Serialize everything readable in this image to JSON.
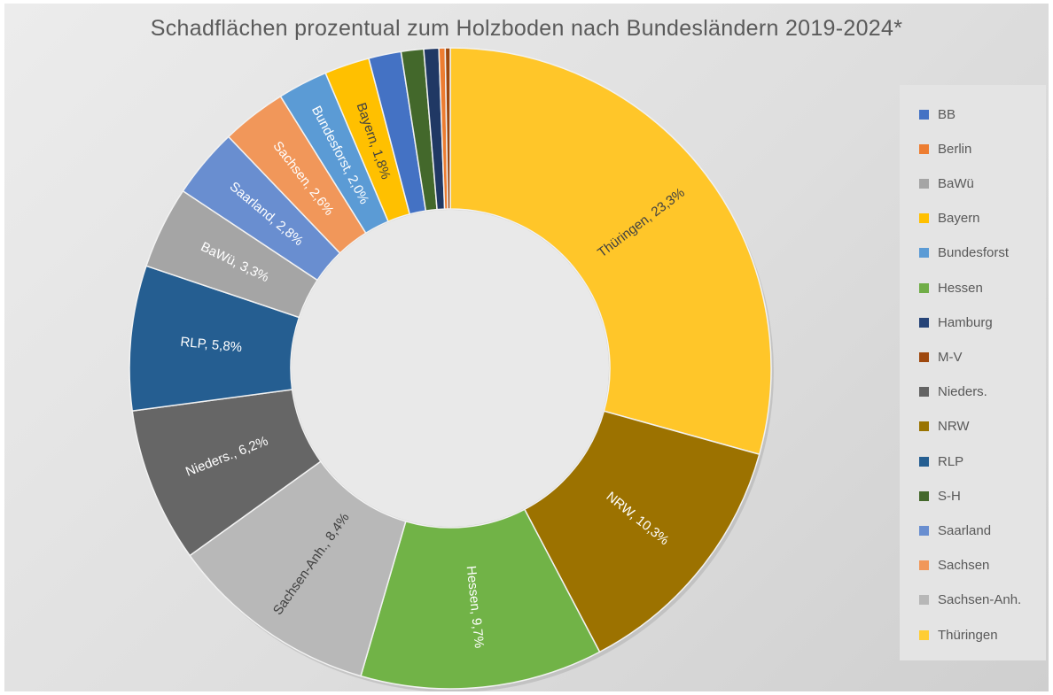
{
  "chart_data": {
    "type": "pie",
    "title": "Schadflächen prozentual zum Holzboden nach Bundesländern 2019-2024*",
    "legend_position": "right",
    "slices": [
      {
        "name": "Thüringen",
        "value": 23.3,
        "label": "Thüringen, 23,3%",
        "color": "#ffc629",
        "label_color": "#404040"
      },
      {
        "name": "NRW",
        "value": 10.3,
        "label": "NRW, 10,3%",
        "color": "#9c7200",
        "label_color": "#ffffff"
      },
      {
        "name": "Hessen",
        "value": 9.7,
        "label": "Hessen, 9,7%",
        "color": "#71b347",
        "label_color": "#ffffff"
      },
      {
        "name": "Sachsen-Anh.",
        "value": 8.4,
        "label": "Sachsen-Anh., 8,4%",
        "color": "#b8b8b8",
        "label_color": "#404040"
      },
      {
        "name": "Nieders.",
        "value": 6.2,
        "label": "Nieders., 6,2%",
        "color": "#666666",
        "label_color": "#ffffff"
      },
      {
        "name": "RLP",
        "value": 5.8,
        "label": "RLP, 5,8%",
        "color": "#255e91",
        "label_color": "#ffffff"
      },
      {
        "name": "BaWü",
        "value": 3.3,
        "label": "BaWü, 3,3%",
        "color": "#a5a5a5",
        "label_color": "#ffffff"
      },
      {
        "name": "Saarland",
        "value": 2.8,
        "label": "Saarland, 2,8%",
        "color": "#698ed0",
        "label_color": "#ffffff"
      },
      {
        "name": "Sachsen",
        "value": 2.6,
        "label": "Sachsen, 2,6%",
        "color": "#f1975a",
        "label_color": "#ffffff"
      },
      {
        "name": "Bundesforst",
        "value": 2.0,
        "label": "Bundesforst, 2,0%",
        "color": "#5b9bd5",
        "label_color": "#ffffff"
      },
      {
        "name": "Bayern",
        "value": 1.8,
        "label": "Bayern, 1,8%",
        "color": "#ffc000",
        "label_color": "#404040"
      },
      {
        "name": "BB",
        "value": 1.3,
        "label": "",
        "color": "#4472c4",
        "label_color": "#ffffff"
      },
      {
        "name": "S-H",
        "value": 0.9,
        "label": "",
        "color": "#43682b",
        "label_color": "#ffffff"
      },
      {
        "name": "Hamburg",
        "value": 0.6,
        "label": "",
        "color": "#203864",
        "label_color": "#ffffff"
      },
      {
        "name": "Berlin",
        "value": 0.25,
        "label": "",
        "color": "#ed7d31",
        "label_color": "#ffffff"
      },
      {
        "name": "M-V",
        "value": 0.2,
        "label": "",
        "color": "#9e480e",
        "label_color": "#ffffff"
      }
    ],
    "legend": [
      {
        "name": "BB",
        "color": "#4472c4"
      },
      {
        "name": "Berlin",
        "color": "#ed7d31"
      },
      {
        "name": "BaWü",
        "color": "#a5a5a5"
      },
      {
        "name": "Bayern",
        "color": "#ffc000"
      },
      {
        "name": "Bundesforst",
        "color": "#5b9bd5"
      },
      {
        "name": "Hessen",
        "color": "#70ad47"
      },
      {
        "name": "Hamburg",
        "color": "#264478"
      },
      {
        "name": "M-V",
        "color": "#9e480e"
      },
      {
        "name": "Nieders.",
        "color": "#636363"
      },
      {
        "name": "NRW",
        "color": "#997300"
      },
      {
        "name": "RLP",
        "color": "#255e91"
      },
      {
        "name": "S-H",
        "color": "#43682b"
      },
      {
        "name": "Saarland",
        "color": "#698ed0"
      },
      {
        "name": "Sachsen",
        "color": "#f1975a"
      },
      {
        "name": "Sachsen-Anh.",
        "color": "#b7b7b7"
      },
      {
        "name": "Thüringen",
        "color": "#ffcd33"
      }
    ]
  }
}
